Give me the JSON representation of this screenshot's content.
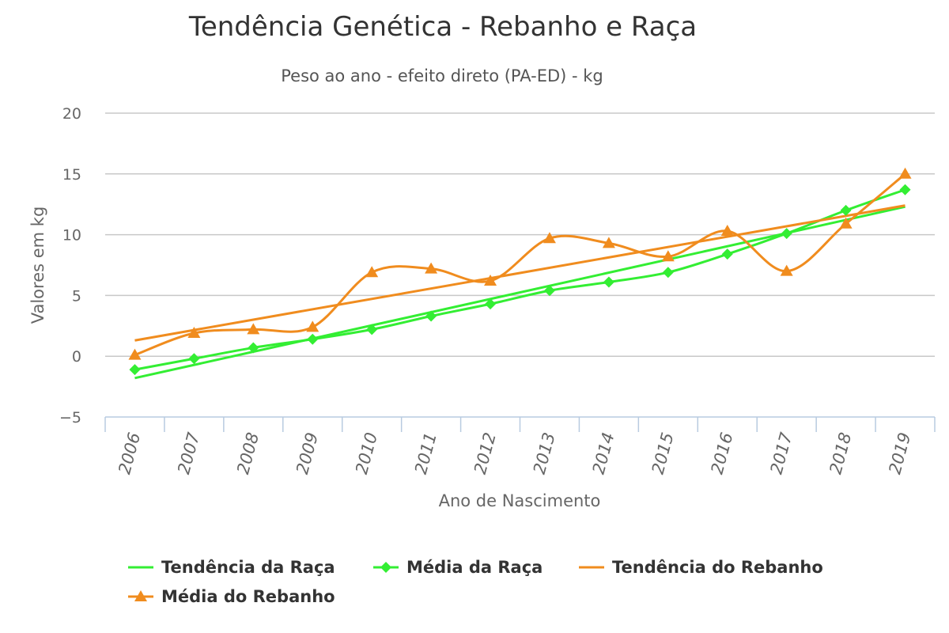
{
  "chart_data": {
    "type": "line",
    "title": "Tendência Genética - Rebanho e Raça",
    "subtitle": "Peso ao ano - efeito direto (PA-ED) - kg",
    "xlabel": "Ano de Nascimento",
    "ylabel": "Valores em kg",
    "ylim": [
      -5,
      20
    ],
    "yticks": [
      "−5",
      "0",
      "5",
      "10",
      "15",
      "20"
    ],
    "categories": [
      "2006",
      "2007",
      "2008",
      "2009",
      "2010",
      "2011",
      "2012",
      "2013",
      "2014",
      "2015",
      "2016",
      "2017",
      "2018",
      "2019"
    ],
    "grid": true,
    "legend_position": "bottom",
    "series": [
      {
        "name": "Tendência da Raça",
        "type": "trend",
        "color": "#33ee33",
        "marker": "none",
        "values": [
          -1.8,
          -0.7,
          0.4,
          1.5,
          2.5,
          3.6,
          4.7,
          5.8,
          6.8,
          7.9,
          9.0,
          10.1,
          11.2,
          12.3
        ]
      },
      {
        "name": "Média da Raça",
        "type": "smooth",
        "color": "#33ee33",
        "marker": "diamond",
        "values": [
          -1.1,
          -0.2,
          0.7,
          1.4,
          2.2,
          3.3,
          4.3,
          5.4,
          6.1,
          6.9,
          8.4,
          10.1,
          12.0,
          13.7
        ]
      },
      {
        "name": "Tendência do Rebanho",
        "type": "trend",
        "color": "#f08c1e",
        "marker": "none",
        "values": [
          1.3,
          2.2,
          3.0,
          3.9,
          4.7,
          5.6,
          6.4,
          7.2,
          8.1,
          8.9,
          9.8,
          10.7,
          11.5,
          12.4
        ]
      },
      {
        "name": "Média do Rebanho",
        "type": "smooth",
        "color": "#f08c1e",
        "marker": "triangle",
        "values": [
          0.1,
          1.9,
          2.2,
          2.4,
          6.9,
          7.2,
          6.2,
          9.7,
          9.3,
          8.2,
          10.3,
          7.0,
          10.9,
          15.0
        ]
      }
    ]
  }
}
